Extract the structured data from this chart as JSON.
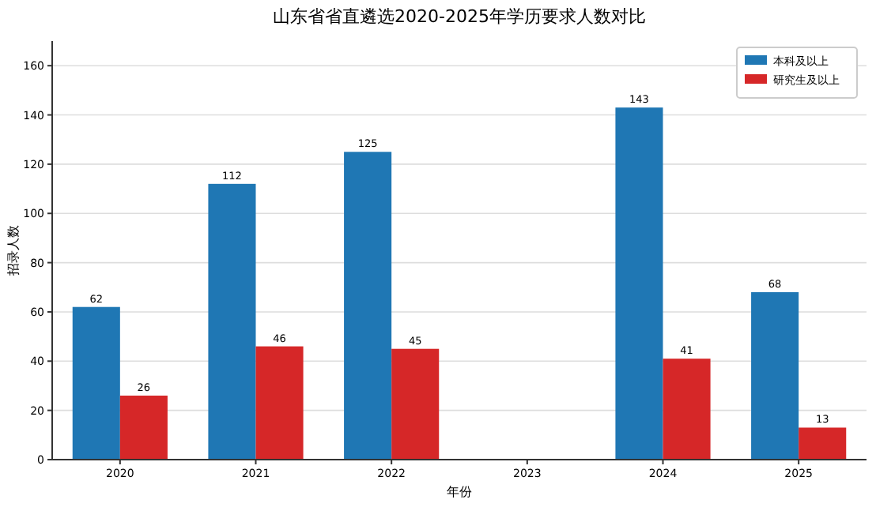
{
  "chart_data": {
    "type": "bar",
    "title": "山东省省直遴选2020-2025年学历要求人数对比",
    "xlabel": "年份",
    "ylabel": "招录人数",
    "categories": [
      "2020",
      "2021",
      "2022",
      "2023",
      "2024",
      "2025"
    ],
    "series": [
      {
        "name": "本科及以上",
        "color": "#1f77b4",
        "values": [
          62,
          112,
          125,
          null,
          143,
          68
        ]
      },
      {
        "name": "研究生及以上",
        "color": "#d62728",
        "values": [
          26,
          46,
          45,
          null,
          41,
          13
        ]
      }
    ],
    "ylim": [
      0,
      170
    ],
    "yticks": [
      0,
      20,
      40,
      60,
      80,
      100,
      120,
      140,
      160
    ],
    "grid": "y",
    "legend": "top right",
    "data_labels": true
  }
}
